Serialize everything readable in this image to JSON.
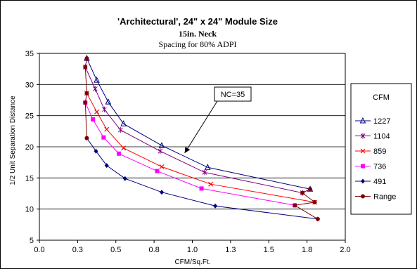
{
  "chart_data": {
    "type": "line",
    "title": "'Architectural', 24\" x 24\" Module Size",
    "subtitle": "15in. Neck",
    "subtitle2": "Spacing for 80% ADPI",
    "xlabel": "CFM/Sq.Ft.",
    "ylabel": "1/2 Unit Separation Distance",
    "xlim": [
      0.0,
      2.0
    ],
    "ylim": [
      5,
      35
    ],
    "x_ticks": [
      "0.0",
      "0.3",
      "0.5",
      "0.8",
      "1.0",
      "1.3",
      "1.5",
      "1.8",
      "2.0"
    ],
    "y_ticks": [
      "5",
      "10",
      "15",
      "20",
      "25",
      "30",
      "35"
    ],
    "grid": "horizontal",
    "legend_title": "CFM",
    "legend_position": "right",
    "annotation": {
      "text": "NC=35",
      "arrow_to": [
        0.95,
        19.0
      ]
    },
    "series": [
      {
        "name": "1227",
        "color": "#000080",
        "marker": "triangle",
        "points": [
          [
            0.31,
            34.2
          ],
          [
            0.375,
            30.7
          ],
          [
            0.45,
            27.2
          ],
          [
            0.55,
            23.7
          ],
          [
            0.8,
            20.2
          ],
          [
            1.1,
            16.7
          ],
          [
            1.77,
            13.2
          ]
        ]
      },
      {
        "name": "1104",
        "color": "#800080",
        "marker": "star",
        "points": [
          [
            0.3,
            32.8
          ],
          [
            0.365,
            29.3
          ],
          [
            0.425,
            26.0
          ],
          [
            0.53,
            22.7
          ],
          [
            0.79,
            19.3
          ],
          [
            1.08,
            15.9
          ],
          [
            1.72,
            12.6
          ]
        ]
      },
      {
        "name": "859",
        "color": "#ff0000",
        "marker": "x",
        "points": [
          [
            0.31,
            28.6
          ],
          [
            0.375,
            25.6
          ],
          [
            0.44,
            22.8
          ],
          [
            0.55,
            19.8
          ],
          [
            0.8,
            16.8
          ],
          [
            1.12,
            14.0
          ],
          [
            1.8,
            11.1
          ]
        ]
      },
      {
        "name": "736",
        "color": "#ff00ff",
        "marker": "square",
        "points": [
          [
            0.3,
            27.1
          ],
          [
            0.35,
            24.4
          ],
          [
            0.42,
            21.5
          ],
          [
            0.52,
            18.9
          ],
          [
            0.77,
            16.1
          ],
          [
            1.06,
            13.3
          ],
          [
            1.67,
            10.6
          ]
        ]
      },
      {
        "name": "491",
        "color": "#000080",
        "marker": "diamond",
        "points": [
          [
            0.31,
            21.4
          ],
          [
            0.37,
            19.3
          ],
          [
            0.44,
            17.0
          ],
          [
            0.56,
            14.9
          ],
          [
            0.8,
            12.7
          ],
          [
            1.15,
            10.5
          ],
          [
            1.82,
            8.4
          ]
        ]
      },
      {
        "name": "Range",
        "color": "#800000",
        "marker": "circle",
        "points": [
          [
            0.31,
            34.2
          ],
          [
            0.3,
            32.8
          ],
          [
            0.31,
            28.6
          ],
          [
            0.3,
            27.1
          ],
          [
            0.31,
            21.4
          ]
        ]
      },
      {
        "name": "Range",
        "color": "#800000",
        "marker": "circle",
        "show_in_legend": false,
        "points": [
          [
            1.77,
            13.2
          ],
          [
            1.72,
            12.6
          ],
          [
            1.8,
            11.1
          ],
          [
            1.67,
            10.6
          ],
          [
            1.82,
            8.4
          ]
        ]
      }
    ]
  }
}
